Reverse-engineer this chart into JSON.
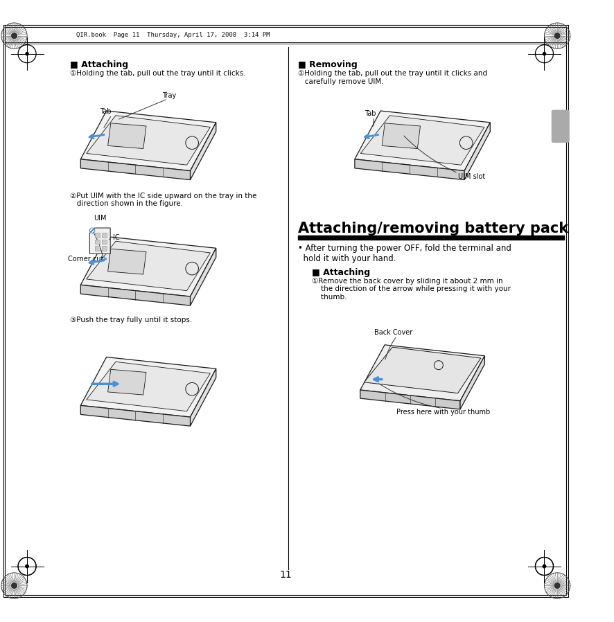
{
  "bg_color": "#ffffff",
  "header_text": "QIR.book  Page 11  Thursday, April 17, 2008  3:14 PM",
  "page_number": "11",
  "text_color": "#000000",
  "accent_color": "#4a90d9",
  "left_section": {
    "attaching_heading": "■ Attaching",
    "step1_text": "①Holding the tab, pull out the tray until it clicks.",
    "label_tray": "Tray",
    "label_tab": "Tab",
    "step2_text": "②Put UIM with the IC side upward on the tray in the\n   direction shown in the figure.",
    "label_uim": "UIM",
    "label_ic": "IC",
    "label_corner_cut": "Corner cut",
    "step3_text": "③Push the tray fully until it stops."
  },
  "right_section": {
    "removing_heading": "■ Removing",
    "removing_step1": "①Holding the tab, pull out the tray until it clicks and\n   carefully remove UIM.",
    "label_tab": "Tab",
    "label_uim_slot": "UIM slot",
    "battery_heading": "Attaching/removing battery pack",
    "bullet": "• After turning the power OFF, fold the terminal and\n  hold it with your hand.",
    "attaching_heading2": "■ Attaching",
    "batt_step1": "①Remove the back cover by sliding it about 2 mm in\n    the direction of the arrow while pressing it with your\n    thumb.",
    "label_back_cover": "Back Cover",
    "label_press": "Press here with your thumb"
  }
}
